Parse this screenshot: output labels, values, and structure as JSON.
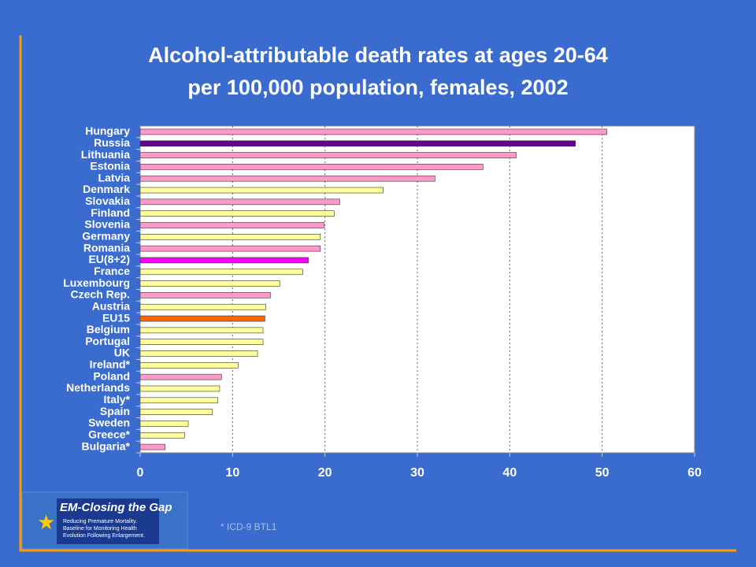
{
  "chart_data": {
    "type": "bar",
    "orientation": "horizontal",
    "title": [
      "Alcohol-attributable death rates at ages 20-64",
      "per 100,000 population, females, 2002"
    ],
    "categories": [
      "Hungary",
      "Russia",
      "Lithuania",
      "Estonia",
      "Latvia",
      "Denmark",
      "Slovakia",
      "Finland",
      "Slovenia",
      "Germany",
      "Romania",
      "EU(8+2)",
      "France",
      "Luxembourg",
      "Czech Rep.",
      "Austria",
      "EU15",
      "Belgium",
      "Portugal",
      "UK",
      "Ireland*",
      "Poland",
      "Netherlands",
      "Italy*",
      "Spain",
      "Sweden",
      "Greece*",
      "Bulgaria*"
    ],
    "values": [
      50.5,
      47.1,
      40.7,
      37.1,
      31.9,
      26.3,
      21.6,
      21.0,
      19.9,
      19.5,
      19.5,
      18.2,
      17.6,
      15.1,
      14.1,
      13.6,
      13.5,
      13.3,
      13.3,
      12.7,
      10.6,
      8.8,
      8.6,
      8.4,
      7.8,
      5.2,
      4.8,
      2.7
    ],
    "colors": [
      "#ff99cc",
      "#660099",
      "#ff99cc",
      "#ff99cc",
      "#ff99cc",
      "#ffff99",
      "#ff99cc",
      "#ffff99",
      "#ff99cc",
      "#ffff99",
      "#ff99cc",
      "#ff00ff",
      "#ffff99",
      "#ffff99",
      "#ff99cc",
      "#ffff99",
      "#ff6600",
      "#ffff99",
      "#ffff99",
      "#ffff99",
      "#ffff99",
      "#ff99cc",
      "#ffff99",
      "#ffff99",
      "#ffff99",
      "#ffff99",
      "#ffff99",
      "#ff99cc"
    ],
    "xlim": [
      0,
      60
    ],
    "xticks": [
      0,
      10,
      20,
      30,
      40,
      50,
      60
    ],
    "grid": true,
    "footnote": "* ICD-9 BTL1"
  },
  "logo": {
    "title": "EM-Closing the Gap",
    "lines": [
      "Reducing Premature Mortality.",
      "Baseline for Monitoring Health",
      "Evolution Following Enlargement."
    ]
  }
}
